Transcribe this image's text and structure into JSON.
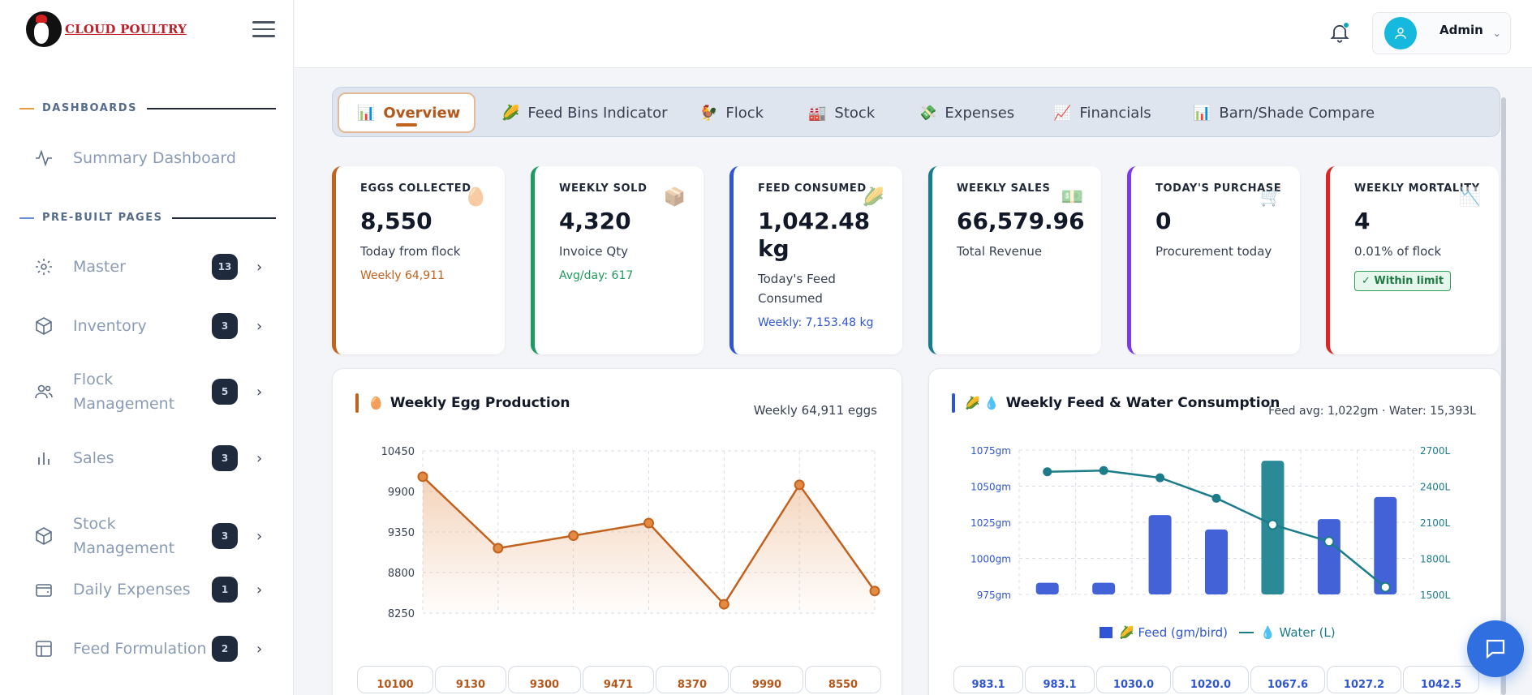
{
  "brand": {
    "name": "CLOUD POULTRY"
  },
  "sidebar": {
    "sections": [
      {
        "label": "DASHBOARDS"
      },
      {
        "label": "PRE-BUILT PAGES"
      }
    ],
    "summary": {
      "label": "Summary Dashboard"
    },
    "items": [
      {
        "label": "Master",
        "badge": "13"
      },
      {
        "label": "Inventory",
        "badge": "3"
      },
      {
        "label": "Flock Management",
        "badge": "5"
      },
      {
        "label": "Sales",
        "badge": "3"
      },
      {
        "label": "Stock Management",
        "badge": "3"
      },
      {
        "label": "Daily Expenses",
        "badge": "1"
      },
      {
        "label": "Feed Formulation",
        "badge": "2"
      }
    ]
  },
  "header": {
    "user": "Admin"
  },
  "tabs": [
    {
      "label": "Overview",
      "icon": "📊"
    },
    {
      "label": "Feed Bins Indicator",
      "icon": "🌽"
    },
    {
      "label": "Flock",
      "icon": "🐓"
    },
    {
      "label": "Stock",
      "icon": "🏭"
    },
    {
      "label": "Expenses",
      "icon": "💸"
    },
    {
      "label": "Financials",
      "icon": "📈"
    },
    {
      "label": "Barn/Shade Compare",
      "icon": "📊"
    }
  ],
  "cards": [
    {
      "title": "EGGS COLLECTED",
      "value": "8,550",
      "sub": "Today from flock",
      "extra": "Weekly 64,911",
      "icon": "🥚",
      "color": "#c2621f",
      "extra_color": "#c2621f"
    },
    {
      "title": "WEEKLY SOLD",
      "value": "4,320",
      "sub": "Invoice Qty",
      "extra": "Avg/day: 617",
      "icon": "📦",
      "color": "#1f9a5e",
      "extra_color": "#1f9a5e"
    },
    {
      "title": "FEED CONSUMED",
      "value": "1,042.48 kg",
      "sub": "Today's Feed Consumed",
      "extra": "Weekly: 7,153.48 kg",
      "icon": "🌽",
      "color": "#2f55d4",
      "extra_color": "#2f55d4"
    },
    {
      "title": "WEEKLY SALES",
      "value": "66,579.96",
      "sub": "Total Revenue",
      "extra": "",
      "icon": "💵",
      "color": "#157d8c",
      "extra_color": "#157d8c"
    },
    {
      "title": "TODAY'S PURCHASE",
      "value": "0",
      "sub": "Procurement today",
      "extra": "",
      "icon": "🛒",
      "color": "#7c3aed",
      "extra_color": "#7c3aed"
    },
    {
      "title": "WEEKLY MORTALITY",
      "value": "4",
      "sub": "0.01% of flock",
      "extra": "",
      "badge": "✓ Within limit",
      "icon": "📉",
      "color": "#dc2626",
      "extra_color": "#dc2626"
    }
  ],
  "egg_panel": {
    "title": "Weekly Egg Production",
    "title_icon": "🥚",
    "summary": "Weekly 64,911 eggs",
    "value_labels": [
      "10100",
      "9130",
      "9300",
      "9471",
      "8370",
      "9990",
      "8550"
    ]
  },
  "feed_panel": {
    "title": "Weekly Feed & Water Consumption",
    "title_icons": "🌽 💧",
    "summary": "Feed avg: 1,022gm · Water: 15,393L",
    "legend_feed": "🌽 Feed (gm/bird)",
    "legend_water": "💧 Water (L)",
    "value_labels": [
      "983.1",
      "983.1",
      "1030.0",
      "1020.0",
      "1067.6",
      "1027.2",
      "1042.5"
    ]
  },
  "chart_data": [
    {
      "type": "line",
      "title": "Weekly Egg Production",
      "series": [
        {
          "values": [
            10100,
            9130,
            9300,
            9471,
            8370,
            9990,
            8550
          ]
        }
      ],
      "yticks": [
        10450,
        9900,
        9350,
        8800,
        8250
      ],
      "ylim": [
        8250,
        10450
      ],
      "grid": true,
      "color": "#c2621f"
    },
    {
      "type": "bar",
      "title": "Weekly Feed & Water Consumption",
      "series": [
        {
          "name": "Feed (gm/bird)",
          "kind": "bar",
          "values": [
            983.1,
            983.1,
            1030.0,
            1020.0,
            1067.6,
            1027.2,
            1042.5
          ],
          "color": "#4362d8",
          "highlight_index": 4,
          "highlight_color": "#2a8a96"
        },
        {
          "name": "Water (L)",
          "kind": "line",
          "values": [
            2520,
            2530,
            2470,
            2300,
            2080,
            1940,
            1560
          ],
          "color": "#1c7c8a"
        }
      ],
      "y_left_ticks": [
        "1075gm",
        "1050gm",
        "1025gm",
        "1000gm",
        "975gm"
      ],
      "y_left_lim": [
        975,
        1075
      ],
      "y_right_ticks": [
        "2700L",
        "2400L",
        "2100L",
        "1800L",
        "1500L"
      ],
      "y_right_lim": [
        1500,
        2700
      ],
      "grid": true,
      "legend": "bottom"
    }
  ]
}
